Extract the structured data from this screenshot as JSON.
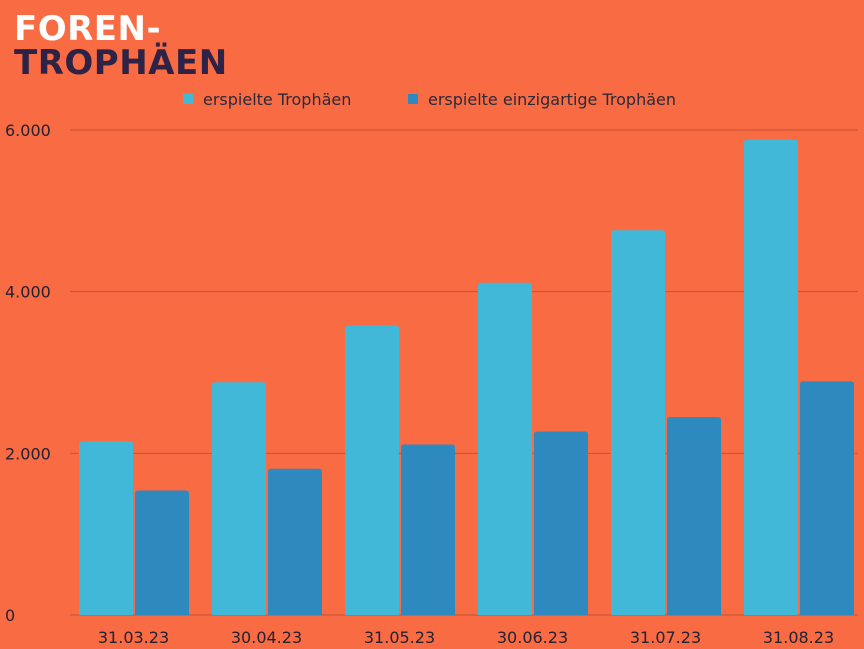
{
  "title": {
    "line1": "FOREN-",
    "line2": "TROPHÄEN"
  },
  "chart_data": {
    "type": "bar",
    "categories": [
      "31.03.23",
      "30.04.23",
      "31.05.23",
      "30.06.23",
      "31.07.23",
      "31.08.23"
    ],
    "series": [
      {
        "name": "erspielte Trophäen",
        "color": "#42B8D8",
        "values": [
          2150,
          2880,
          3580,
          4110,
          4760,
          5880
        ]
      },
      {
        "name": "erspielte einzigartige Trophäen",
        "color": "#2E8ABE",
        "values": [
          1540,
          1810,
          2110,
          2270,
          2450,
          2890
        ]
      }
    ],
    "yticks": [
      {
        "value": 0,
        "label": "0"
      },
      {
        "value": 2000,
        "label": "2.000"
      },
      {
        "value": 4000,
        "label": "4.000"
      },
      {
        "value": 6000,
        "label": "6.000"
      }
    ],
    "ylim": [
      0,
      6000
    ],
    "grid": true,
    "legend_position": "top-center",
    "gridline_color": "#C4503A",
    "text_color": "#222233"
  }
}
